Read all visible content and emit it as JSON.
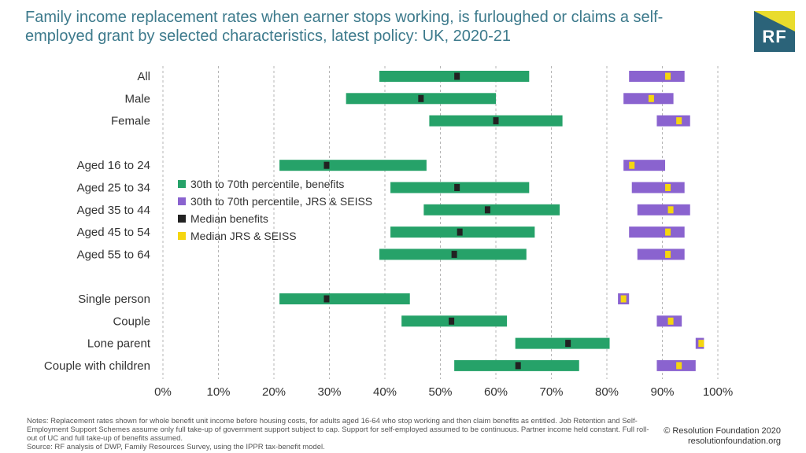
{
  "header": {
    "title": "Family income replacement rates when earner stops working, is furloughed or claims a self-employed grant by selected characteristics, latest policy: UK, 2020-21",
    "logo_text": "RF"
  },
  "footer": {
    "notes": [
      "Notes: Replacement rates shown for whole benefit unit income before housing costs, for adults aged 16-64 who stop working and then claim benefits as entitled. Job Retention and Self-Employment Support Schemes assume only full take-up of government support subject to cap. Support for self-employed assumed to be continuous. Partner income held constant. Full roll-out of UC and full take-up of benefits assumed.",
      "Source: RF analysis of DWP, Family Resources Survey, using the IPPR tax-benefit model."
    ],
    "copyright": "© Resolution Foundation 2020",
    "website": "resolutionfoundation.org"
  },
  "colors": {
    "benefits_range": "#26a269",
    "jrs_range": "#8a63cf",
    "median_benefits": "#222222",
    "median_jrs": "#f5d60f",
    "grid": "#b5b5b5",
    "text": "#333333"
  },
  "chart_data": {
    "type": "range-bar",
    "title": "",
    "xlabel": "",
    "ylabel": "",
    "xlim": [
      0,
      100
    ],
    "xticks": [
      "0%",
      "10%",
      "20%",
      "30%",
      "40%",
      "50%",
      "60%",
      "70%",
      "80%",
      "90%",
      "100%"
    ],
    "grid": "vertical dashed",
    "legend_position": "left, inside plot",
    "legend": [
      {
        "label": "30th to 70th percentile, benefits",
        "color": "#26a269"
      },
      {
        "label": "30th to 70th percentile, JRS & SEISS",
        "color": "#8a63cf"
      },
      {
        "label": "Median benefits",
        "color": "#222222"
      },
      {
        "label": "Median JRS & SEISS",
        "color": "#f5d60f"
      }
    ],
    "groups": [
      {
        "name": "",
        "rows": [
          {
            "label": "All",
            "benefits": [
              39,
              66
            ],
            "benefits_median": 53,
            "jrs": [
              84,
              94
            ],
            "jrs_median": 91
          },
          {
            "label": "Male",
            "benefits": [
              33,
              60
            ],
            "benefits_median": 46.5,
            "jrs": [
              83,
              92
            ],
            "jrs_median": 88
          },
          {
            "label": "Female",
            "benefits": [
              48,
              72
            ],
            "benefits_median": 60,
            "jrs": [
              89,
              95
            ],
            "jrs_median": 93
          }
        ]
      },
      {
        "name": "",
        "rows": [
          {
            "label": "Aged 16 to 24",
            "benefits": [
              21,
              47.5
            ],
            "benefits_median": 29.5,
            "jrs": [
              83,
              90.5
            ],
            "jrs_median": 84.5
          },
          {
            "label": "Aged 25 to 34",
            "benefits": [
              41,
              66
            ],
            "benefits_median": 53,
            "jrs": [
              84.5,
              94
            ],
            "jrs_median": 91
          },
          {
            "label": "Aged 35 to 44",
            "benefits": [
              47,
              71.5
            ],
            "benefits_median": 58.5,
            "jrs": [
              85.5,
              95
            ],
            "jrs_median": 91.5
          },
          {
            "label": "Aged 45 to 54",
            "benefits": [
              41,
              67
            ],
            "benefits_median": 53.5,
            "jrs": [
              84,
              94
            ],
            "jrs_median": 91
          },
          {
            "label": "Aged 55 to 64",
            "benefits": [
              39,
              65.5
            ],
            "benefits_median": 52.5,
            "jrs": [
              85.5,
              94
            ],
            "jrs_median": 91
          }
        ]
      },
      {
        "name": "",
        "rows": [
          {
            "label": "Single person",
            "benefits": [
              21,
              44.5
            ],
            "benefits_median": 29.5,
            "jrs": [
              82,
              84
            ],
            "jrs_median": 83
          },
          {
            "label": "Couple",
            "benefits": [
              43,
              62
            ],
            "benefits_median": 52,
            "jrs": [
              89,
              93.5
            ],
            "jrs_median": 91.5
          },
          {
            "label": "Lone parent",
            "benefits": [
              63.5,
              80.5
            ],
            "benefits_median": 73,
            "jrs": [
              96,
              97.5
            ],
            "jrs_median": 97
          },
          {
            "label": "Couple with children",
            "benefits": [
              52.5,
              75
            ],
            "benefits_median": 64,
            "jrs": [
              89,
              96
            ],
            "jrs_median": 93
          }
        ]
      }
    ]
  }
}
